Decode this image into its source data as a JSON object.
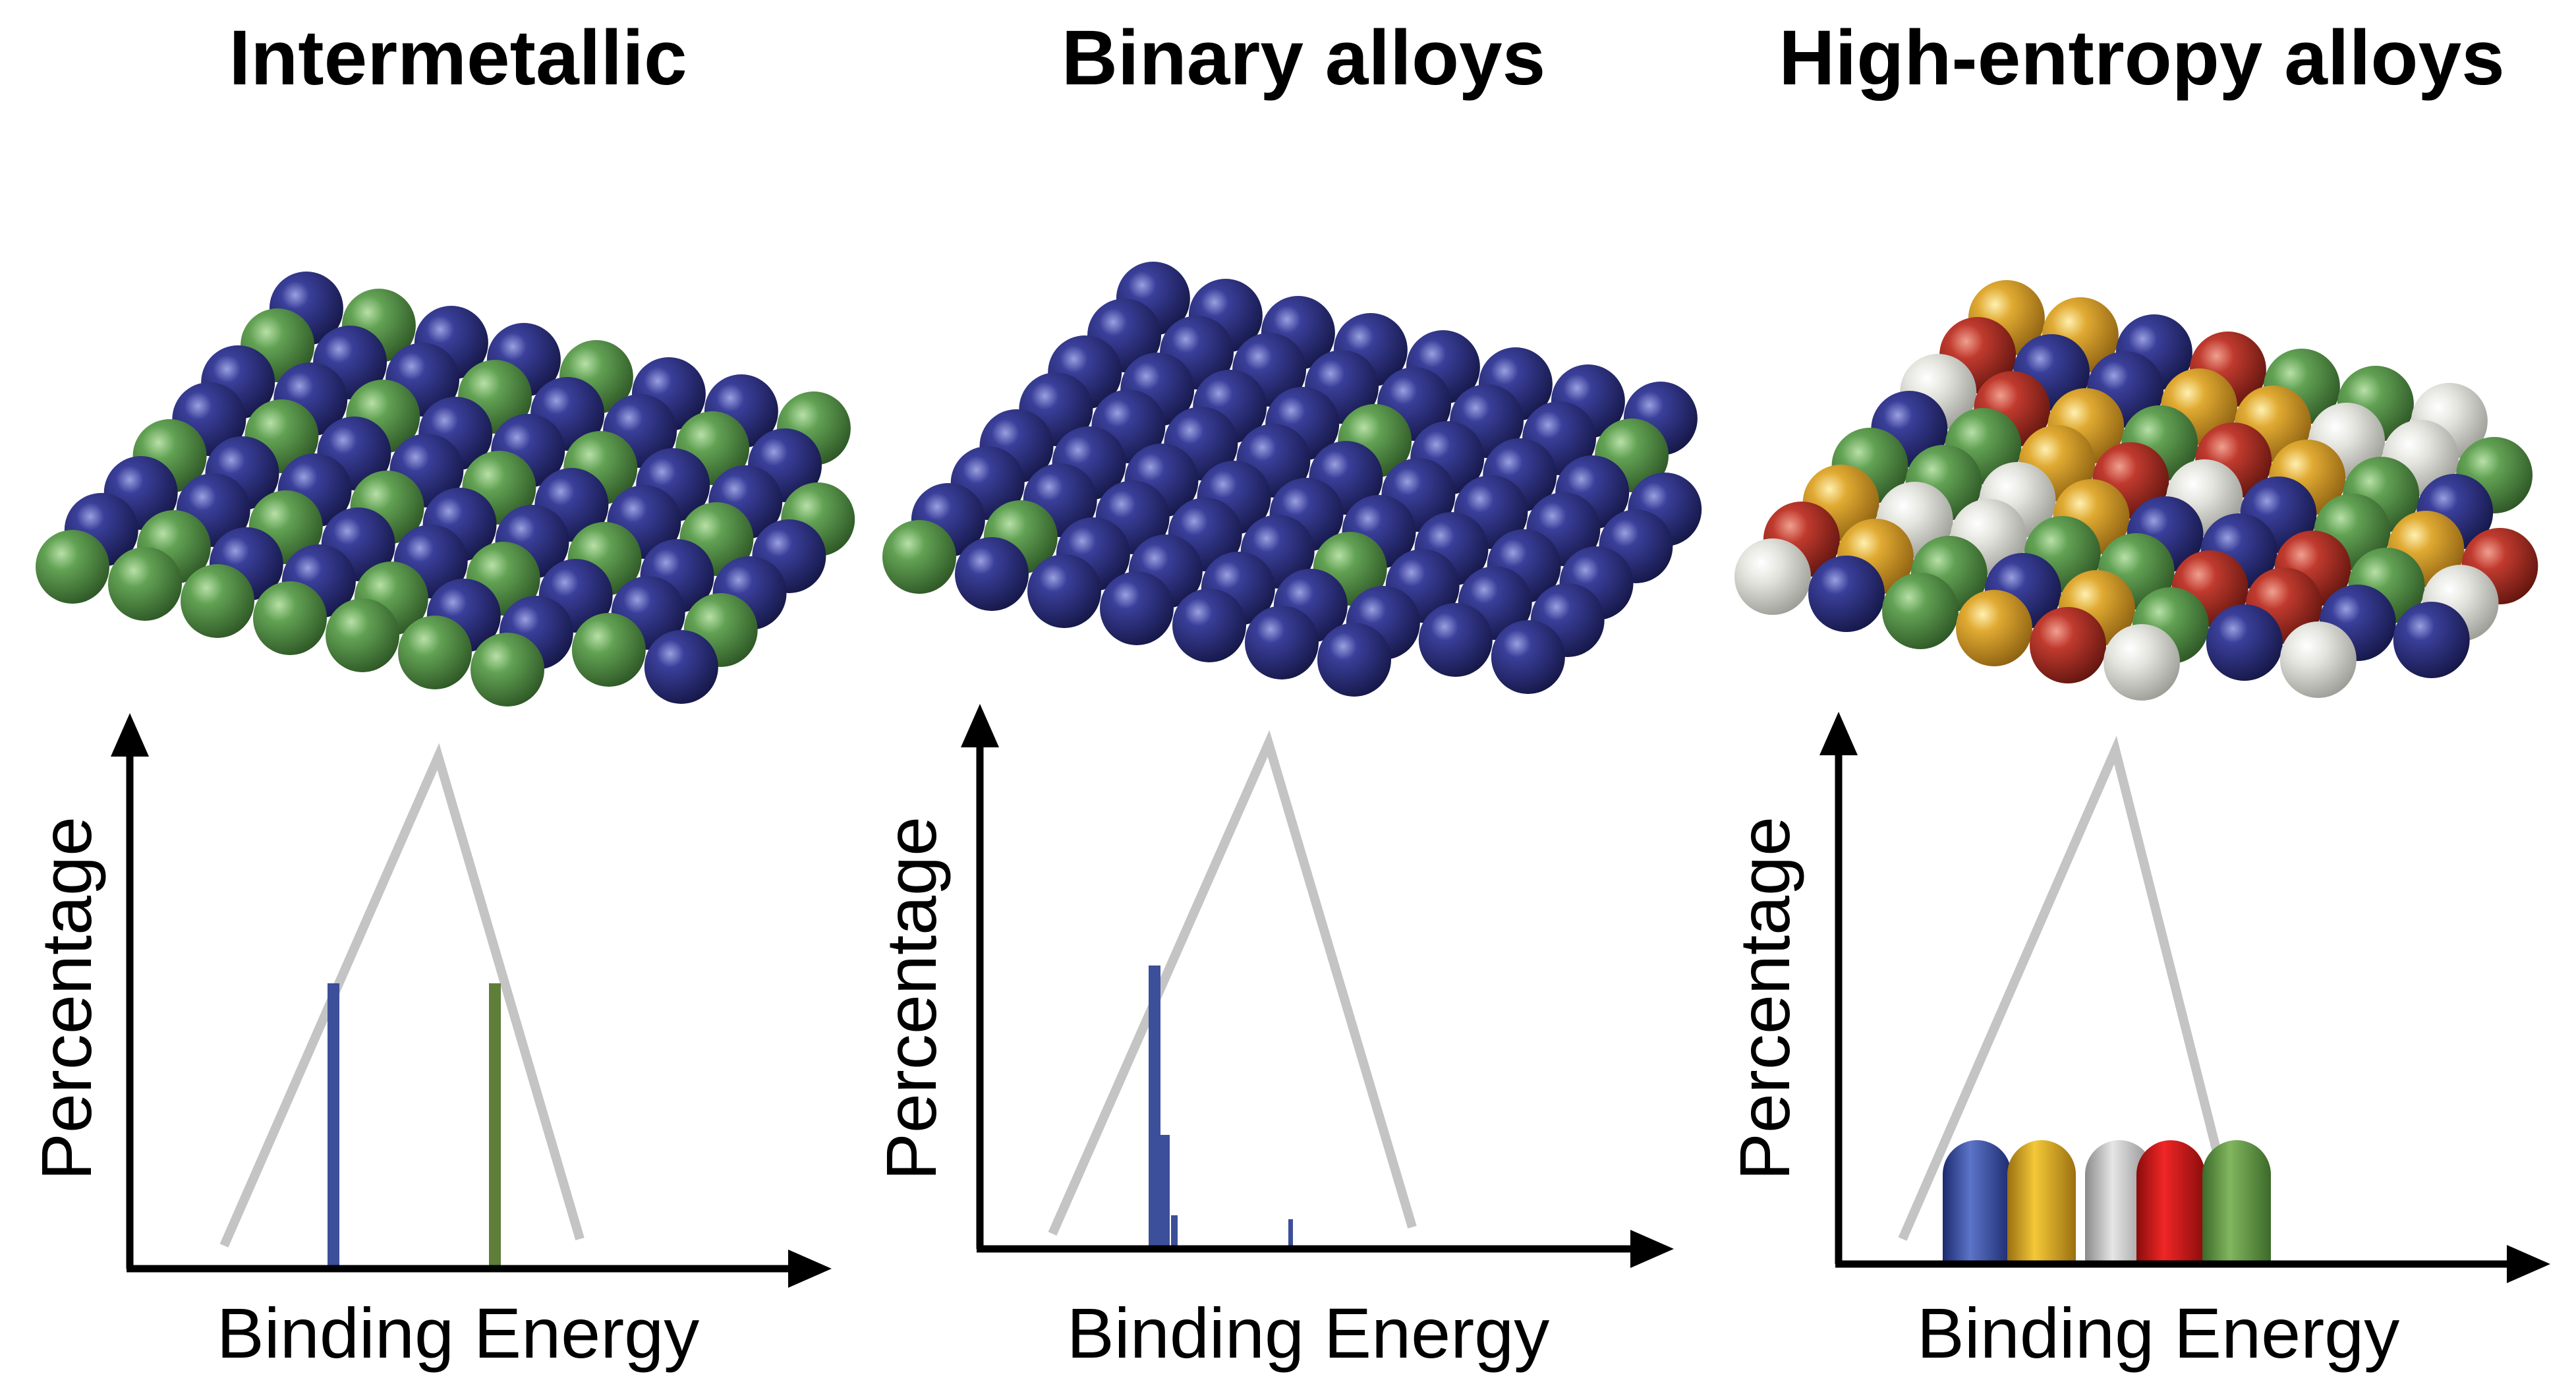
{
  "panels": [
    {
      "title": "Intermetallic",
      "y_axis_label": "Percentage",
      "x_axis_label": "Binding Energy",
      "atom_colors": [
        "blue",
        "green"
      ]
    },
    {
      "title": "Binary alloys",
      "y_axis_label": "Percentage",
      "x_axis_label": "Binding Energy",
      "atom_colors": [
        "blue",
        "green"
      ]
    },
    {
      "title": "High-entropy alloys",
      "y_axis_label": "Percentage",
      "x_axis_label": "Binding Energy",
      "atom_colors": [
        "blue",
        "gold",
        "white",
        "red",
        "green"
      ]
    }
  ],
  "colors": {
    "blue": "#2b2f7c",
    "green": "#5c9a4c",
    "gold": "#d8a22c",
    "white": "#dcdcd6",
    "red": "#b8352c",
    "axis": "#000000",
    "envelope": "#c4c4c4",
    "bar_blue": "#3c4f9a",
    "bar_green": "#5e7e3a"
  }
}
